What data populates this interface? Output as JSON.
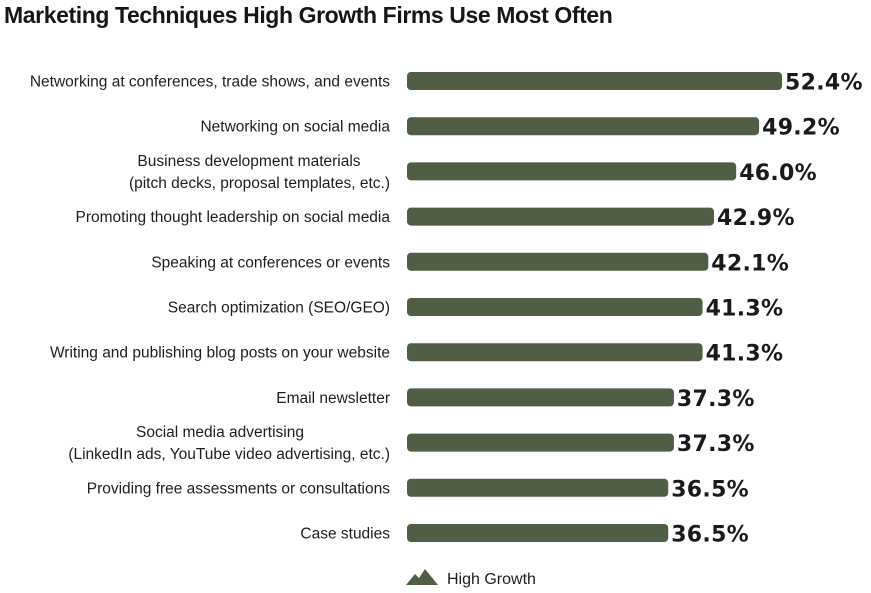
{
  "chart_data": {
    "type": "bar",
    "orientation": "horizontal",
    "title": "Marketing Techniques High Growth Firms Use Most Often",
    "xlabel": "",
    "ylabel": "",
    "xlim": [
      0,
      52.4
    ],
    "grid": false,
    "legend_position": "bottom-center",
    "categories": [
      [
        "Networking at conferences, trade shows, and events"
      ],
      [
        "Networking on social media"
      ],
      [
        "Business development materials",
        "(pitch decks, proposal templates, etc.)"
      ],
      [
        "Promoting thought leadership on social media"
      ],
      [
        "Speaking at conferences or events"
      ],
      [
        "Search optimization (SEO/GEO)"
      ],
      [
        "Writing and publishing blog posts on your website"
      ],
      [
        "Email newsletter"
      ],
      [
        "Social media advertising",
        "(LinkedIn ads, YouTube video advertising, etc.)"
      ],
      [
        "Providing free assessments or consultations"
      ],
      [
        "Case studies"
      ]
    ],
    "series": [
      {
        "name": "High Growth",
        "color": "#4f5e44",
        "values": [
          52.4,
          49.2,
          46.0,
          42.9,
          42.1,
          41.3,
          41.3,
          37.3,
          37.3,
          36.5,
          36.5
        ],
        "labels": [
          "52.4%",
          "49.2%",
          "46.0%",
          "42.9%",
          "42.1%",
          "41.3%",
          "41.3%",
          "37.3%",
          "37.3%",
          "36.5%",
          "36.5%"
        ]
      }
    ]
  },
  "legend": {
    "icon": "mountain-icon",
    "label": "High Growth"
  }
}
